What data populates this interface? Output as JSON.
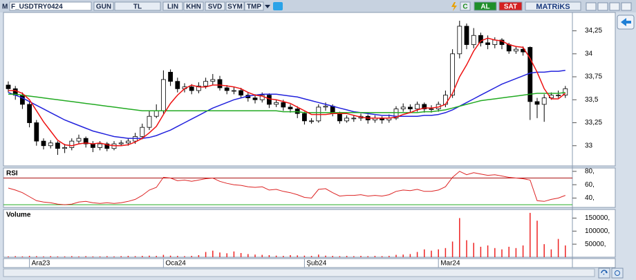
{
  "toolbar": {
    "logo": "M",
    "items": [
      "F_USDTRY0424",
      "GUN",
      "TL",
      "LIN",
      "KHN",
      "SVD",
      "SYM",
      "TMP"
    ],
    "right": [
      "C",
      "AL",
      "SAT"
    ],
    "brand": "MATRiKS"
  },
  "chart_data": [
    {
      "type": "candlestick",
      "categories": [
        null,
        null,
        null,
        "Ara23",
        null,
        null,
        null,
        null,
        null,
        null,
        null,
        null,
        null,
        null,
        null,
        null,
        null,
        null,
        null,
        null,
        null,
        null,
        "Oca24",
        null,
        null,
        null,
        null,
        null,
        null,
        null,
        null,
        null,
        null,
        null,
        null,
        null,
        null,
        null,
        null,
        null,
        null,
        null,
        "Şub24",
        null,
        null,
        null,
        null,
        null,
        null,
        null,
        null,
        null,
        null,
        null,
        null,
        null,
        null,
        null,
        null,
        null,
        null,
        "Mar24",
        null,
        null,
        null,
        null,
        null,
        null,
        null,
        null,
        null,
        null,
        null,
        null,
        null,
        null,
        null,
        null,
        null,
        null
      ],
      "open": [
        33.66,
        33.62,
        33.55,
        33.45,
        33.25,
        33.05,
        33.0,
        33.03,
        32.97,
        32.98,
        33.05,
        33.08,
        33.02,
        32.98,
        33.02,
        32.97,
        33.02,
        33.03,
        33.05,
        33.1,
        33.2,
        33.32,
        33.38,
        33.8,
        33.7,
        33.62,
        33.64,
        33.6,
        33.65,
        33.7,
        33.72,
        33.63,
        33.6,
        33.6,
        33.55,
        33.52,
        33.5,
        33.55,
        33.45,
        33.47,
        33.42,
        33.4,
        33.35,
        33.27,
        33.27,
        33.42,
        33.43,
        33.35,
        33.27,
        33.3,
        33.3,
        33.32,
        33.28,
        33.3,
        33.28,
        33.3,
        33.4,
        33.42,
        33.4,
        33.45,
        33.4,
        33.4,
        33.45,
        33.55,
        34.0,
        34.3,
        34.1,
        34.2,
        34.12,
        34.1,
        34.15,
        34.1,
        34.03,
        34.05,
        34.07,
        33.48,
        33.45,
        33.52,
        33.55,
        33.55
      ],
      "high": [
        33.7,
        33.65,
        33.58,
        33.48,
        33.28,
        33.08,
        33.06,
        33.05,
        33.02,
        33.08,
        33.12,
        33.1,
        33.05,
        33.05,
        33.04,
        33.05,
        33.06,
        33.08,
        33.14,
        33.24,
        33.38,
        33.45,
        33.82,
        33.83,
        33.74,
        33.68,
        33.67,
        33.69,
        33.74,
        33.78,
        33.76,
        33.66,
        33.64,
        33.63,
        33.58,
        33.56,
        33.58,
        33.57,
        33.5,
        33.5,
        33.45,
        33.43,
        33.37,
        33.3,
        33.45,
        33.47,
        33.45,
        33.37,
        33.33,
        33.33,
        33.35,
        33.34,
        33.33,
        33.32,
        33.34,
        33.43,
        33.46,
        33.45,
        33.48,
        33.47,
        33.44,
        33.48,
        33.6,
        34.05,
        34.36,
        34.33,
        34.28,
        34.23,
        34.2,
        34.18,
        34.17,
        34.12,
        34.08,
        34.08,
        34.08,
        33.52,
        33.56,
        33.58,
        33.6,
        33.65
      ],
      "low": [
        33.58,
        33.5,
        33.4,
        33.2,
        33.0,
        32.96,
        32.97,
        32.9,
        32.92,
        32.95,
        33.02,
        32.98,
        32.93,
        32.95,
        32.94,
        32.95,
        33.0,
        33.0,
        33.02,
        33.07,
        33.17,
        33.3,
        33.35,
        33.65,
        33.58,
        33.58,
        33.56,
        33.57,
        33.62,
        33.66,
        33.6,
        33.56,
        33.56,
        33.52,
        33.48,
        33.46,
        33.47,
        33.41,
        33.42,
        33.38,
        33.36,
        33.3,
        33.23,
        33.24,
        33.25,
        33.38,
        33.32,
        33.24,
        33.25,
        33.26,
        33.27,
        33.24,
        33.25,
        33.24,
        33.25,
        33.28,
        33.37,
        33.36,
        33.37,
        33.36,
        33.36,
        33.37,
        33.42,
        33.52,
        33.95,
        34.05,
        34.06,
        34.08,
        34.05,
        34.06,
        34.05,
        34.0,
        34.0,
        33.98,
        33.28,
        33.3,
        33.26,
        33.5,
        33.52,
        33.52
      ],
      "close": [
        33.62,
        33.55,
        33.45,
        33.25,
        33.05,
        33.0,
        33.03,
        32.97,
        32.98,
        33.05,
        33.08,
        33.02,
        32.98,
        33.02,
        32.97,
        33.02,
        33.03,
        33.05,
        33.1,
        33.2,
        33.32,
        33.38,
        33.72,
        33.7,
        33.62,
        33.64,
        33.6,
        33.65,
        33.7,
        33.72,
        33.63,
        33.6,
        33.6,
        33.55,
        33.52,
        33.5,
        33.55,
        33.45,
        33.47,
        33.42,
        33.4,
        33.35,
        33.27,
        33.27,
        33.42,
        33.43,
        33.35,
        33.27,
        33.3,
        33.3,
        33.32,
        33.28,
        33.3,
        33.28,
        33.3,
        33.4,
        33.42,
        33.4,
        33.45,
        33.4,
        33.4,
        33.45,
        33.55,
        34.0,
        34.3,
        34.1,
        34.2,
        34.12,
        34.1,
        34.15,
        34.1,
        34.03,
        34.05,
        34.02,
        33.48,
        33.45,
        33.52,
        33.55,
        33.55,
        33.62
      ],
      "lines": [
        {
          "color": "#2222dd",
          "values": [
            33.58,
            33.55,
            33.52,
            33.48,
            33.44,
            33.4,
            33.36,
            33.32,
            33.28,
            33.25,
            33.22,
            33.19,
            33.16,
            33.14,
            33.12,
            33.1,
            33.09,
            33.08,
            33.08,
            33.08,
            33.09,
            33.11,
            33.14,
            33.17,
            33.21,
            33.25,
            33.29,
            33.33,
            33.37,
            33.41,
            33.44,
            33.47,
            33.5,
            33.52,
            33.54,
            33.55,
            33.56,
            33.56,
            33.56,
            33.55,
            33.54,
            33.53,
            33.51,
            33.49,
            33.47,
            33.45,
            33.43,
            33.41,
            33.39,
            33.37,
            33.36,
            33.35,
            33.34,
            33.33,
            33.33,
            33.32,
            33.32,
            33.32,
            33.32,
            33.33,
            33.33,
            33.34,
            33.36,
            33.39,
            33.43,
            33.47,
            33.51,
            33.55,
            33.59,
            33.63,
            33.67,
            33.7,
            33.73,
            33.76,
            33.79,
            33.8,
            33.8,
            33.81,
            33.81,
            33.82
          ]
        },
        {
          "color": "#22aa22",
          "values": [
            33.56,
            33.56,
            33.55,
            33.54,
            33.53,
            33.52,
            33.51,
            33.5,
            33.49,
            33.48,
            33.47,
            33.46,
            33.45,
            33.44,
            33.43,
            33.42,
            33.41,
            33.4,
            33.39,
            33.38,
            33.38,
            33.38,
            33.38,
            33.38,
            33.38,
            33.38,
            33.38,
            33.38,
            33.38,
            33.38,
            33.38,
            33.38,
            33.38,
            33.38,
            33.38,
            33.38,
            33.38,
            33.38,
            33.38,
            33.37,
            33.37,
            33.37,
            33.36,
            33.36,
            33.36,
            33.36,
            33.36,
            33.36,
            33.36,
            33.36,
            33.36,
            33.36,
            33.36,
            33.36,
            33.36,
            33.36,
            33.36,
            33.36,
            33.36,
            33.37,
            33.37,
            33.38,
            33.39,
            33.41,
            33.43,
            33.45,
            33.47,
            33.49,
            33.5,
            33.51,
            33.52,
            33.53,
            33.54,
            33.55,
            33.56,
            33.57,
            33.57,
            33.57,
            33.57,
            33.58
          ]
        },
        {
          "color": "#ee1111",
          "values": [
            33.6,
            33.6,
            33.57,
            33.5,
            33.38,
            33.26,
            33.16,
            33.06,
            33.01,
            33.0,
            33.02,
            33.03,
            33.02,
            33.03,
            33.01,
            33.0,
            33.0,
            33.01,
            33.04,
            33.08,
            33.14,
            33.21,
            33.34,
            33.46,
            33.55,
            33.62,
            33.66,
            33.64,
            33.64,
            33.66,
            33.66,
            33.65,
            33.64,
            33.62,
            33.58,
            33.55,
            33.54,
            33.51,
            33.5,
            33.48,
            33.46,
            33.42,
            33.38,
            33.34,
            33.34,
            33.34,
            33.35,
            33.35,
            33.35,
            33.33,
            33.31,
            33.3,
            33.3,
            33.3,
            33.3,
            33.31,
            33.34,
            33.36,
            33.39,
            33.41,
            33.41,
            33.42,
            33.45,
            33.57,
            33.75,
            33.88,
            34.03,
            34.14,
            34.17,
            34.15,
            34.14,
            34.1,
            34.08,
            34.07,
            33.95,
            33.8,
            33.62,
            33.51,
            33.51,
            33.57
          ]
        }
      ],
      "up_color": "#ffffff",
      "down_color": "#000000",
      "ylim": [
        32.78,
        34.45
      ],
      "yticks": [
        {
          "value": 34.25,
          "label": "34,25"
        },
        34,
        {
          "value": 33.75,
          "label": "33,75"
        },
        {
          "value": 33.5,
          "label": "33,5"
        },
        {
          "value": 33.25,
          "label": "33,25"
        },
        33
      ]
    },
    {
      "type": "line",
      "title": "RSI",
      "series": [
        {
          "color": "#dd2222",
          "values": [
            55,
            52,
            48,
            42,
            36,
            34,
            33,
            31,
            30,
            31,
            34,
            35,
            33,
            32,
            33,
            32,
            33,
            35,
            38,
            44,
            52,
            56,
            71,
            70,
            66,
            67,
            65,
            67,
            69,
            70,
            65,
            62,
            60,
            59,
            57,
            56,
            57,
            52,
            53,
            50,
            48,
            45,
            41,
            40,
            53,
            54,
            48,
            43,
            44,
            44,
            45,
            43,
            44,
            43,
            45,
            50,
            52,
            51,
            53,
            50,
            50,
            52,
            57,
            71,
            80,
            75,
            78,
            76,
            74,
            75,
            73,
            71,
            70,
            69,
            67,
            36,
            35,
            38,
            40,
            44
          ]
        }
      ],
      "hlines": [
        {
          "value": 70,
          "color": "#aa1111"
        },
        {
          "value": 30,
          "color": "#22aa22"
        }
      ],
      "ylim": [
        26,
        85
      ],
      "yticks": [
        {
          "value": 80,
          "label": "80,"
        },
        {
          "value": 60,
          "label": "60,"
        },
        {
          "value": 40,
          "label": "40,"
        }
      ]
    },
    {
      "type": "bar",
      "title": "Volume",
      "color": "#ee2222",
      "values": [
        3000,
        4000,
        3000,
        5000,
        4000,
        3000,
        4000,
        3000,
        3000,
        4000,
        3000,
        4000,
        3000,
        3000,
        4000,
        3000,
        4000,
        5000,
        4000,
        5000,
        6000,
        5000,
        9000,
        6000,
        5000,
        4000,
        5000,
        8000,
        20000,
        25000,
        18000,
        15000,
        22000,
        16000,
        12000,
        10000,
        9000,
        8000,
        6000,
        5000,
        8000,
        7000,
        6000,
        5000,
        10000,
        6000,
        5000,
        4000,
        5000,
        4000,
        5000,
        4000,
        5000,
        4000,
        5000,
        9000,
        10000,
        12000,
        20000,
        30000,
        25000,
        30000,
        35000,
        60000,
        150000,
        65000,
        55000,
        40000,
        45000,
        35000,
        30000,
        40000,
        35000,
        45000,
        170000,
        140000,
        50000,
        30000,
        70000,
        45000
      ],
      "ylim": [
        0,
        183000
      ],
      "yticks": [
        {
          "value": 150000,
          "label": "150000,"
        },
        {
          "value": 100000,
          "label": "100000,"
        },
        {
          "value": 50000,
          "label": "50000,"
        }
      ]
    }
  ]
}
